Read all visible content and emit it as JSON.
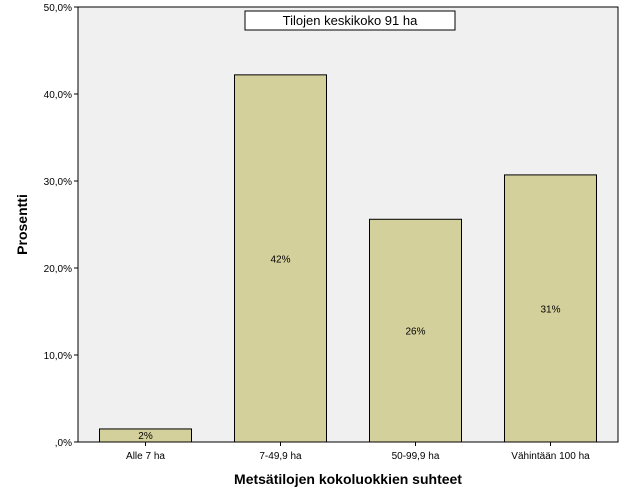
{
  "chart_data": {
    "type": "bar",
    "categories": [
      "Alle 7 ha",
      "7-49,9 ha",
      "50-99,9 ha",
      "Vähintään 100 ha"
    ],
    "values": [
      1.5,
      42.2,
      25.6,
      30.7
    ],
    "data_labels": [
      "2%",
      "42%",
      "26%",
      "31%"
    ],
    "title": "",
    "annotation": "Tilojen keskikoko 91 ha",
    "xlabel": "Metsätilojen kokoluokkien suhteet",
    "ylabel": "Prosentti",
    "ylim": [
      0,
      50
    ],
    "yticks": [
      0,
      10,
      20,
      30,
      40,
      50
    ],
    "ytick_labels": [
      ",0%",
      "10,0%",
      "20,0%",
      "30,0%",
      "40,0%",
      "50,0%"
    ],
    "grid": false,
    "colors": {
      "bar_fill": "#d4d09c",
      "bar_stroke": "#000000",
      "plot_bg": "#f0f0f0",
      "page_bg": "#ffffff"
    }
  }
}
